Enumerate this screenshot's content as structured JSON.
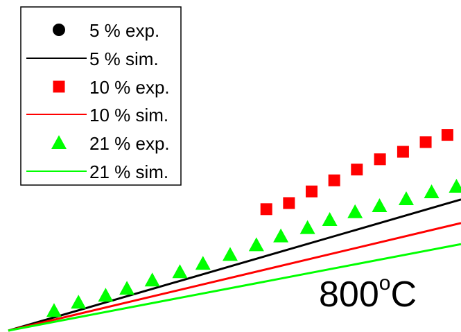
{
  "chart_data": {
    "type": "scatter",
    "annotation": {
      "value": "800",
      "superscript": "o",
      "unit": "C"
    },
    "legend": {
      "placement": "top-left",
      "entries": [
        "5 % exp.",
        "5 % sim.",
        "10 % exp.",
        "10 % sim.",
        "21 % exp.",
        "21 % sim."
      ]
    },
    "series": [
      {
        "name": "5 % exp.",
        "kind": "markers",
        "marker": "circle",
        "color": "#000000",
        "points": []
      },
      {
        "name": "5 % sim.",
        "kind": "line",
        "color": "#000000",
        "points": [
          [
            0.0,
            0.0
          ],
          [
            1.0,
            0.473
          ]
        ]
      },
      {
        "name": "10 % exp.",
        "kind": "markers",
        "marker": "square",
        "color": "#ff0000",
        "points": [
          [
            0.57,
            0.438
          ],
          [
            0.62,
            0.46
          ],
          [
            0.67,
            0.502
          ],
          [
            0.72,
            0.542
          ],
          [
            0.77,
            0.581
          ],
          [
            0.821,
            0.618
          ],
          [
            0.872,
            0.645
          ],
          [
            0.922,
            0.68
          ],
          [
            0.97,
            0.706
          ]
        ]
      },
      {
        "name": "10 % sim.",
        "kind": "line",
        "color": "#ff0000",
        "points": [
          [
            0.0,
            0.0
          ],
          [
            1.0,
            0.388
          ]
        ]
      },
      {
        "name": "21 % exp.",
        "kind": "markers",
        "marker": "triangle",
        "color": "#00ff00",
        "points": [
          [
            0.101,
            0.072
          ],
          [
            0.155,
            0.102
          ],
          [
            0.215,
            0.127
          ],
          [
            0.262,
            0.152
          ],
          [
            0.318,
            0.182
          ],
          [
            0.379,
            0.212
          ],
          [
            0.43,
            0.242
          ],
          [
            0.49,
            0.274
          ],
          [
            0.548,
            0.309
          ],
          [
            0.602,
            0.341
          ],
          [
            0.661,
            0.371
          ],
          [
            0.71,
            0.4
          ],
          [
            0.766,
            0.428
          ],
          [
            0.82,
            0.45
          ],
          [
            0.879,
            0.475
          ],
          [
            0.935,
            0.5
          ],
          [
            0.99,
            0.52
          ]
        ]
      },
      {
        "name": "21 % sim.",
        "kind": "line",
        "color": "#00ff00",
        "points": [
          [
            0.0,
            0.0
          ],
          [
            1.0,
            0.312
          ]
        ]
      }
    ]
  }
}
